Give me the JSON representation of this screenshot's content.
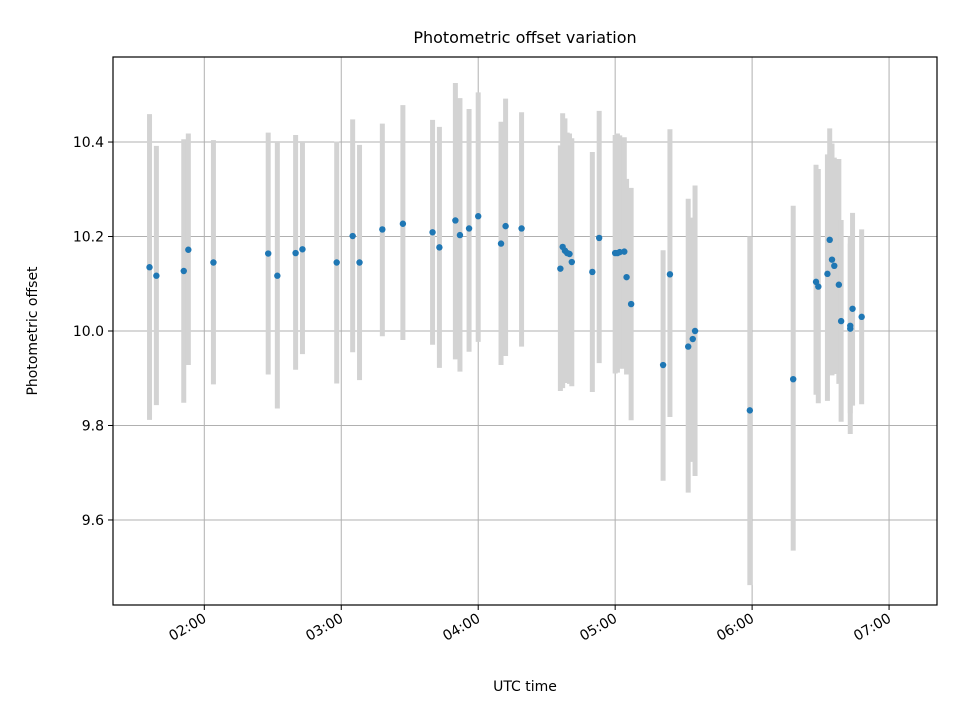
{
  "chart_data": {
    "type": "scatter",
    "title": "Photometric offset variation",
    "xlabel": "UTC time",
    "ylabel": "Photometric offset",
    "x_ticks": [
      "02:00",
      "03:00",
      "04:00",
      "05:00",
      "06:00",
      "07:00"
    ],
    "y_ticks": [
      9.6,
      9.8,
      10.0,
      10.2,
      10.4
    ],
    "xlim": [
      "01:20",
      "07:21"
    ],
    "ylim": [
      9.42,
      10.58
    ],
    "grid": true,
    "error_bars": true,
    "colors": {
      "points": "#1f77b4",
      "error_bars": "#d3d3d3",
      "grid": "#b0b0b0"
    },
    "series": [
      {
        "x": [
          "01:36",
          "01:39",
          "01:51",
          "01:53",
          "02:04",
          "02:28",
          "02:32",
          "02:40",
          "02:43",
          "02:58",
          "03:05",
          "03:08",
          "03:18",
          "03:27",
          "03:40",
          "03:43",
          "03:50",
          "03:52",
          "03:56",
          "04:00",
          "04:10",
          "04:12",
          "04:19",
          "04:36",
          "04:37",
          "04:38",
          "04:39",
          "04:40",
          "04:41",
          "04:50",
          "04:53",
          "05:00",
          "05:01",
          "05:02",
          "05:04",
          "05:05",
          "05:07",
          "05:21",
          "05:24",
          "05:32",
          "05:34",
          "05:35",
          "05:59",
          "06:18",
          "06:28",
          "06:29",
          "06:33",
          "06:34",
          "06:35",
          "06:36",
          "06:38",
          "06:39",
          "06:43",
          "06:43",
          "06:44",
          "06:48"
        ],
        "y": [
          10.135,
          10.117,
          10.127,
          10.172,
          10.145,
          10.164,
          10.117,
          10.165,
          10.173,
          10.145,
          10.201,
          10.145,
          10.215,
          10.227,
          10.209,
          10.177,
          10.234,
          10.203,
          10.217,
          10.243,
          10.185,
          10.222,
          10.217,
          10.132,
          10.178,
          10.17,
          10.165,
          10.163,
          10.146,
          10.125,
          10.197,
          10.165,
          10.165,
          10.167,
          10.168,
          10.114,
          10.057,
          9.928,
          10.12,
          9.967,
          9.983,
          10.0,
          9.832,
          9.898,
          10.104,
          10.094,
          10.121,
          10.193,
          10.151,
          10.138,
          10.098,
          10.021,
          10.005,
          10.011,
          10.047,
          10.03
        ],
        "err_low": [
          9.812,
          9.843,
          9.848,
          9.928,
          9.887,
          9.908,
          9.836,
          9.918,
          9.951,
          9.889,
          9.955,
          9.896,
          9.989,
          9.981,
          9.971,
          9.922,
          9.94,
          9.914,
          9.956,
          9.977,
          9.928,
          9.947,
          9.967,
          9.873,
          9.879,
          9.89,
          9.91,
          9.888,
          9.883,
          9.871,
          9.932,
          9.91,
          9.912,
          9.92,
          9.92,
          9.908,
          9.811,
          9.683,
          9.818,
          9.658,
          9.723,
          9.693,
          9.462,
          9.535,
          9.865,
          9.847,
          9.852,
          9.921,
          9.906,
          9.909,
          9.888,
          9.808,
          9.826,
          9.782,
          9.842,
          9.845
        ],
        "err_high": [
          10.459,
          10.392,
          10.406,
          10.418,
          10.404,
          10.42,
          10.4,
          10.415,
          10.4,
          10.401,
          10.448,
          10.394,
          10.439,
          10.478,
          10.447,
          10.432,
          10.525,
          10.493,
          10.47,
          10.505,
          10.443,
          10.492,
          10.463,
          10.393,
          10.461,
          10.45,
          10.42,
          10.418,
          10.408,
          10.379,
          10.466,
          10.415,
          10.418,
          10.414,
          10.41,
          10.322,
          10.303,
          10.171,
          10.427,
          10.28,
          10.24,
          10.308,
          10.2,
          10.265,
          10.352,
          10.343,
          10.374,
          10.429,
          10.397,
          10.367,
          10.364,
          10.235,
          10.185,
          10.2,
          10.25,
          10.215
        ]
      }
    ]
  }
}
